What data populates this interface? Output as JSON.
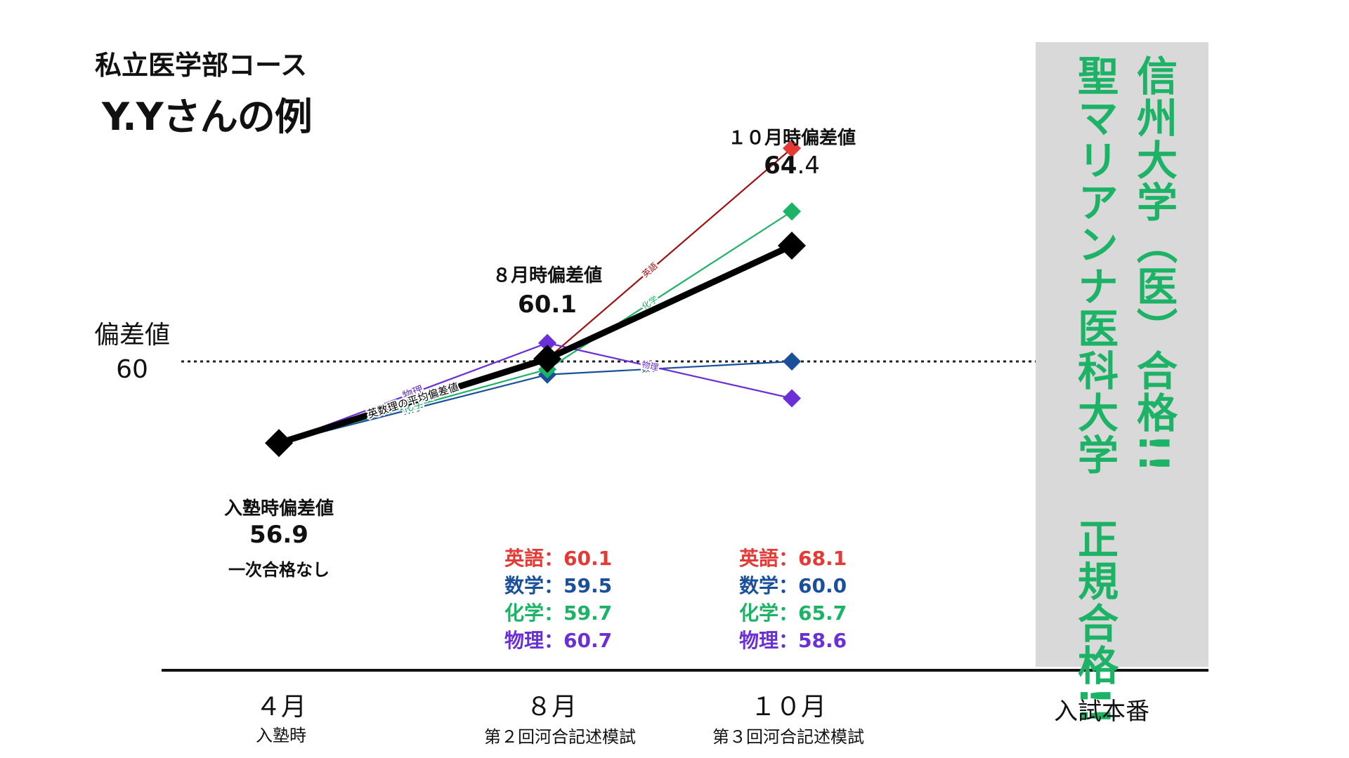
{
  "course_title": "私立医学部コース",
  "student_title": "Y.Yさんの例",
  "reference": {
    "label_line1": "偏差値",
    "label_line2": "60",
    "value": 60
  },
  "point_labels": [
    {
      "heading": "入塾時偏差値",
      "value": "56.9",
      "note": "一次合格なし"
    },
    {
      "heading": "８月時偏差値",
      "value": "60.1"
    },
    {
      "heading": "１０月時偏差値",
      "value_main": "64",
      "value_tail": ".4"
    }
  ],
  "x_categories": [
    {
      "label": "４月",
      "sub": "入塾時"
    },
    {
      "label": "８月",
      "sub": "第２回河合記述模試"
    },
    {
      "label": "１０月",
      "sub": "第３回河合記述模試"
    },
    {
      "label": "入試本番",
      "sub": ""
    }
  ],
  "scores_aug": [
    {
      "text": "英語：60.1",
      "color": "#e53935"
    },
    {
      "text": "数学：59.5",
      "color": "#1a4f9c"
    },
    {
      "text": "化学：59.7",
      "color": "#1db366"
    },
    {
      "text": "物理：60.7",
      "color": "#6a2fd6"
    }
  ],
  "scores_oct": [
    {
      "text": "英語：68.1",
      "color": "#e53935"
    },
    {
      "text": "数学：60.0",
      "color": "#1a4f9c"
    },
    {
      "text": "化学：65.7",
      "color": "#1db366"
    },
    {
      "text": "物理：58.6",
      "color": "#6a2fd6"
    }
  ],
  "results": {
    "line1": "信州大学（医）合格!!",
    "line2": "聖マリアンナ医科大学　正規合格!!"
  },
  "chart_data": {
    "type": "line",
    "title": "",
    "categories": [
      "４月",
      "８月",
      "１０月"
    ],
    "reference_line": 60,
    "series": [
      {
        "name": "英語",
        "values": [
          56.9,
          60.1,
          68.1
        ],
        "color": "#e53935",
        "line_color": "#a01010"
      },
      {
        "name": "数学",
        "values": [
          56.9,
          59.5,
          60.0
        ],
        "color": "#1a4f9c",
        "line_color": "#1a4f9c"
      },
      {
        "name": "化学",
        "values": [
          56.9,
          59.7,
          65.7
        ],
        "color": "#1db366",
        "line_color": "#1db366"
      },
      {
        "name": "物理",
        "values": [
          56.9,
          60.7,
          58.6
        ],
        "color": "#6a2fd6",
        "line_color": "#6a2fd6"
      },
      {
        "name": "英数理の平均偏差値",
        "values": [
          56.9,
          60.1,
          64.4
        ],
        "color": "#000000",
        "line_color": "#000000"
      }
    ]
  }
}
